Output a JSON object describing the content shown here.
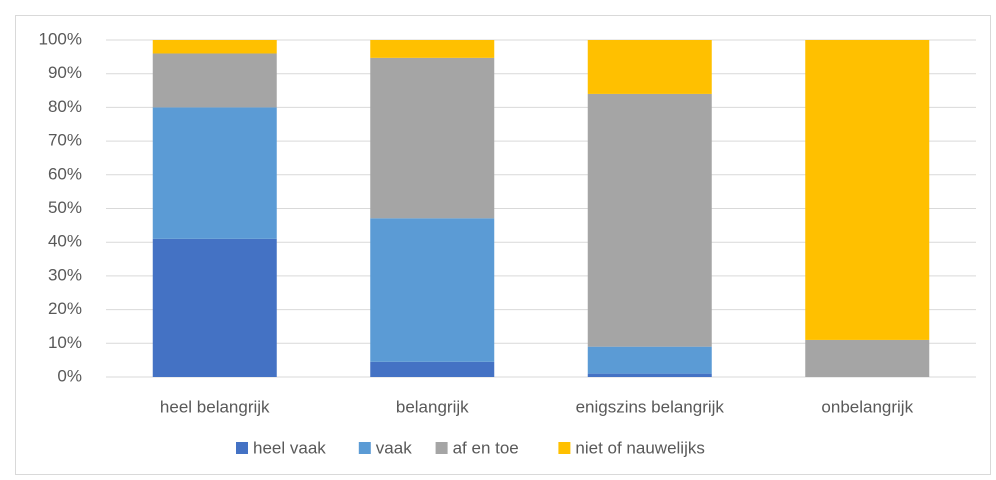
{
  "chart_data": {
    "type": "stacked_bar",
    "categories": [
      "heel belangrijk",
      "belangrijk",
      "enigszins belangrijk",
      "onbelangrijk"
    ],
    "series": [
      {
        "name": "heel vaak",
        "color": "#4472c4",
        "values": [
          41,
          4.5,
          1,
          0
        ]
      },
      {
        "name": "vaak",
        "color": "#5b9bd5",
        "values": [
          39,
          42.6,
          8,
          0
        ]
      },
      {
        "name": "af en toe",
        "color": "#a5a5a5",
        "values": [
          16,
          47.6,
          75,
          11
        ]
      },
      {
        "name": "niet of nauwelijks",
        "color": "#ffc000",
        "values": [
          4,
          5.3,
          16,
          89
        ]
      }
    ],
    "ylim": [
      0,
      100
    ],
    "yticks": [
      {
        "value": 0,
        "label": "0%"
      },
      {
        "value": 10,
        "label": "10%"
      },
      {
        "value": 20,
        "label": "20%"
      },
      {
        "value": 30,
        "label": "30%"
      },
      {
        "value": 40,
        "label": "40%"
      },
      {
        "value": 50,
        "label": "50%"
      },
      {
        "value": 60,
        "label": "60%"
      },
      {
        "value": 70,
        "label": "70%"
      },
      {
        "value": 80,
        "label": "80%"
      },
      {
        "value": 90,
        "label": "90%"
      },
      {
        "value": 100,
        "label": "100%"
      }
    ],
    "grid": true,
    "legend": "bottom"
  }
}
